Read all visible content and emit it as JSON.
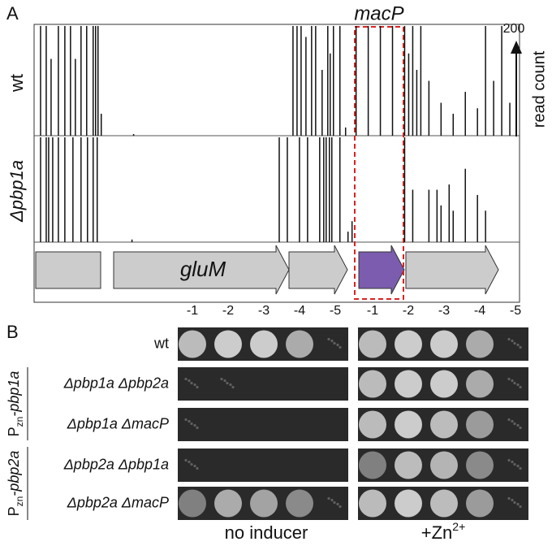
{
  "panel_a": {
    "label": "A",
    "gene_label": "macP",
    "feature": "gluM",
    "scale_max": "200",
    "scale_title": "read count",
    "xlim": [
      0,
      600
    ],
    "ylim": [
      0,
      200
    ],
    "tracks": [
      {
        "name": "wt",
        "positions": [
          8,
          15,
          21,
          30,
          38,
          45,
          51,
          58,
          65,
          73,
          76,
          79,
          83,
          123,
          320,
          325,
          330,
          336,
          343,
          348,
          356,
          363,
          366,
          370,
          378,
          385,
          398,
          413,
          428,
          443,
          458,
          463,
          468,
          473,
          478,
          488,
          503,
          518,
          533,
          548,
          558,
          568,
          578,
          588
        ],
        "values": [
          200,
          200,
          140,
          200,
          200,
          200,
          140,
          200,
          200,
          200,
          200,
          200,
          40,
          3,
          200,
          200,
          200,
          180,
          200,
          200,
          120,
          200,
          150,
          200,
          200,
          15,
          200,
          200,
          200,
          200,
          200,
          150,
          200,
          120,
          200,
          100,
          60,
          40,
          80,
          50,
          200,
          100,
          200,
          60
        ]
      },
      {
        "name": "Δpbp1a",
        "positions": [
          8,
          15,
          18,
          23,
          30,
          38,
          48,
          58,
          66,
          73,
          78,
          121,
          303,
          313,
          328,
          338,
          353,
          358,
          361,
          365,
          368,
          378,
          388,
          393,
          458,
          468,
          488,
          498,
          503,
          513,
          518,
          533,
          548,
          558
        ],
        "values": [
          200,
          200,
          200,
          200,
          200,
          200,
          200,
          200,
          200,
          200,
          200,
          5,
          200,
          200,
          200,
          200,
          200,
          200,
          200,
          200,
          200,
          200,
          20,
          40,
          200,
          100,
          100,
          100,
          70,
          110,
          60,
          140,
          90,
          60
        ]
      }
    ]
  },
  "panel_b": {
    "label": "B",
    "dilutions": [
      "-1",
      "-2",
      "-3",
      "-4",
      "-5"
    ],
    "conditions": [
      {
        "name": "no inducer"
      },
      {
        "name": "+Zn",
        "sup": "2+"
      }
    ],
    "rows": [
      "wt",
      "Δpbp1a Δpbp2a",
      "Δpbp1a ΔmacP",
      "Δpbp2a Δpbp1a",
      "Δpbp2a ΔmacP"
    ],
    "groups": [
      {
        "prefix": "P",
        "sub": "zn",
        "name": "-pbp1a"
      },
      {
        "prefix": "P",
        "sub": "zn",
        "name": "-pbp2a"
      }
    ]
  }
}
